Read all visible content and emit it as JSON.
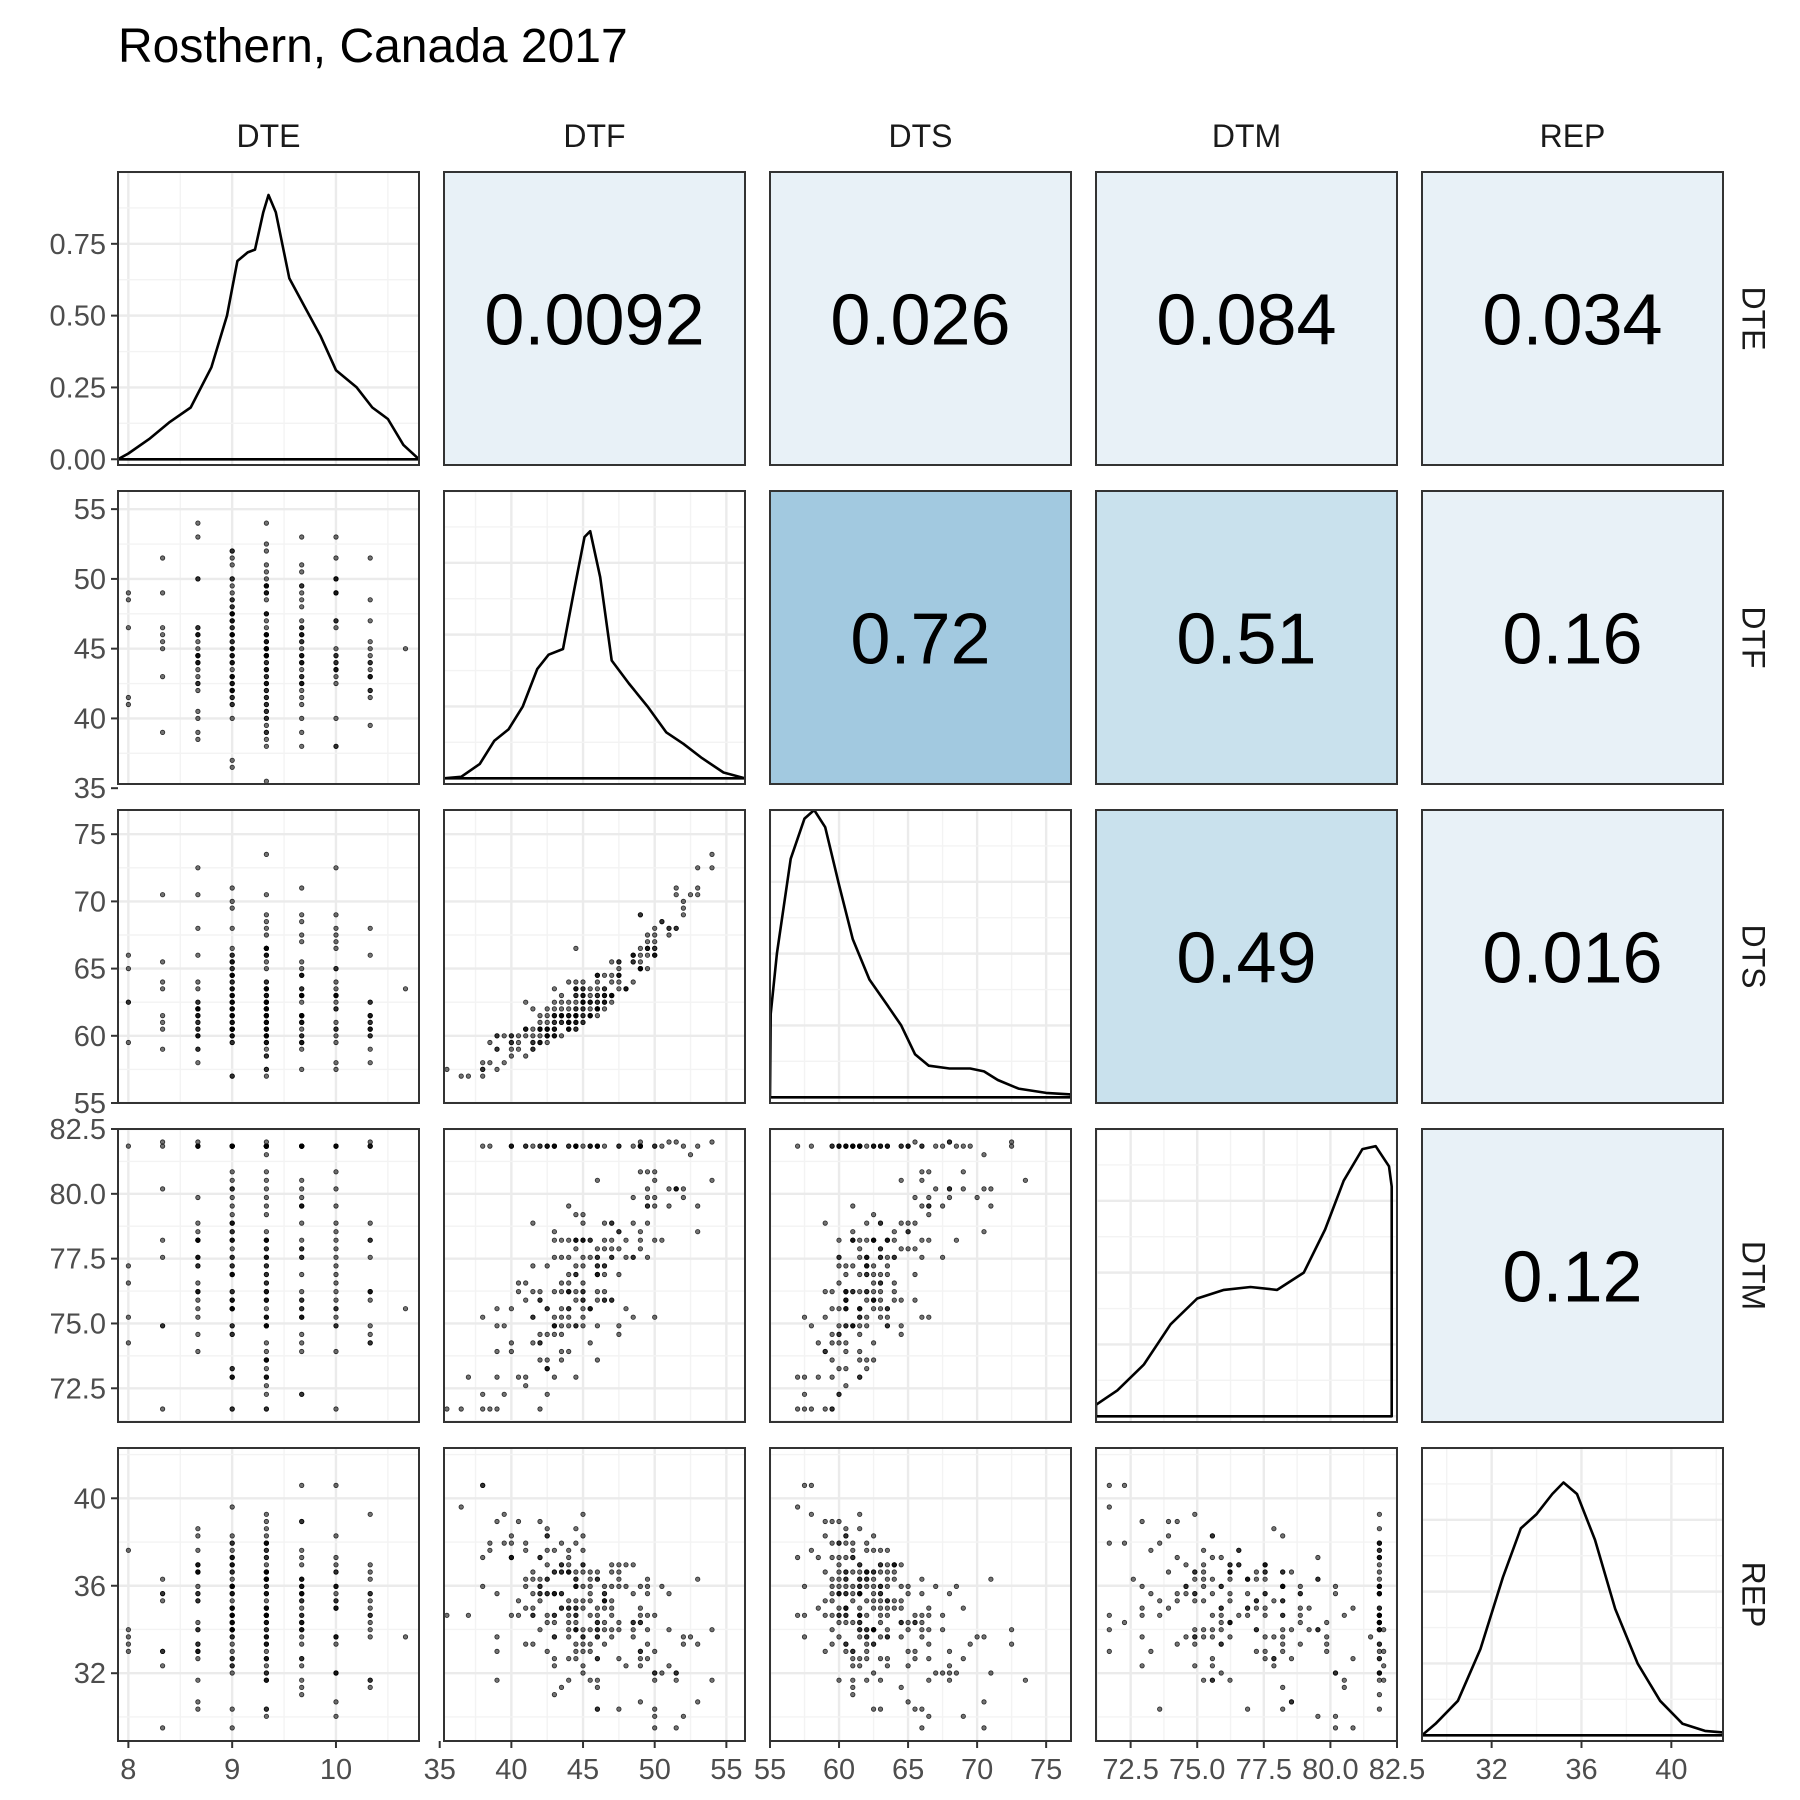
{
  "chart_data": {
    "type": "scatter-matrix",
    "title": "Rosthern, Canada 2017",
    "variables": [
      "DTE",
      "DTF",
      "DTS",
      "DTM",
      "REP"
    ],
    "axes": {
      "DTE": {
        "range": [
          7.9,
          10.8
        ],
        "ticks": [
          8,
          9,
          10
        ],
        "tick_labels": [
          "8",
          "9",
          "10"
        ]
      },
      "DTF": {
        "range": [
          35.3,
          56.3
        ],
        "ticks": [
          35,
          40,
          45,
          50,
          55
        ],
        "tick_labels": [
          "35",
          "40",
          "45",
          "50",
          "55"
        ]
      },
      "DTS": {
        "range": [
          55,
          76.8
        ],
        "ticks": [
          55,
          60,
          65,
          70,
          75
        ],
        "tick_labels": [
          "55",
          "60",
          "65",
          "70",
          "75"
        ]
      },
      "DTM": {
        "range": [
          71.2,
          82.5
        ],
        "ticks": [
          72.5,
          75.0,
          77.5,
          80.0,
          82.5
        ],
        "tick_labels": [
          "72.5",
          "75.0",
          "77.5",
          "80.0",
          "82.5"
        ]
      },
      "REP": {
        "range": [
          28.9,
          42.3
        ],
        "ticks": [
          32,
          36,
          40
        ],
        "tick_labels": [
          "32",
          "36",
          "40"
        ]
      }
    },
    "density_axis": {
      "range": [
        -0.02,
        1.0
      ],
      "ticks": [
        0.0,
        0.25,
        0.5,
        0.75
      ],
      "tick_labels": [
        "0.00",
        "0.25",
        "0.50",
        "0.75"
      ]
    },
    "correlations": [
      {
        "row": "DTE",
        "col": "DTF",
        "value": "0.0092",
        "fill": "#e8f1f7"
      },
      {
        "row": "DTE",
        "col": "DTS",
        "value": "0.026",
        "fill": "#e8f1f7"
      },
      {
        "row": "DTE",
        "col": "DTM",
        "value": "0.084",
        "fill": "#e8f1f7"
      },
      {
        "row": "DTE",
        "col": "REP",
        "value": "0.034",
        "fill": "#e8f1f7"
      },
      {
        "row": "DTF",
        "col": "DTS",
        "value": "0.72",
        "fill": "#a2c9e0"
      },
      {
        "row": "DTF",
        "col": "DTM",
        "value": "0.51",
        "fill": "#c9e1ed"
      },
      {
        "row": "DTF",
        "col": "REP",
        "value": "0.16",
        "fill": "#e8f1f7"
      },
      {
        "row": "DTS",
        "col": "DTM",
        "value": "0.49",
        "fill": "#c9e1ed"
      },
      {
        "row": "DTS",
        "col": "REP",
        "value": "0.016",
        "fill": "#e8f1f7"
      },
      {
        "row": "DTM",
        "col": "REP",
        "value": "0.12",
        "fill": "#e8f1f7"
      }
    ],
    "densities": {
      "DTE": [
        [
          7.9,
          0.0
        ],
        [
          8.0,
          0.02
        ],
        [
          8.2,
          0.07
        ],
        [
          8.4,
          0.13
        ],
        [
          8.6,
          0.18
        ],
        [
          8.8,
          0.32
        ],
        [
          8.95,
          0.5
        ],
        [
          9.05,
          0.69
        ],
        [
          9.15,
          0.72
        ],
        [
          9.22,
          0.73
        ],
        [
          9.3,
          0.86
        ],
        [
          9.35,
          0.92
        ],
        [
          9.42,
          0.86
        ],
        [
          9.55,
          0.63
        ],
        [
          9.7,
          0.53
        ],
        [
          9.85,
          0.43
        ],
        [
          10.0,
          0.31
        ],
        [
          10.2,
          0.25
        ],
        [
          10.35,
          0.18
        ],
        [
          10.5,
          0.14
        ],
        [
          10.65,
          0.05
        ],
        [
          10.8,
          0.0
        ]
      ],
      "DTF": [
        [
          35.3,
          0.0
        ],
        [
          36.5,
          0.005
        ],
        [
          37.8,
          0.05
        ],
        [
          38.8,
          0.13
        ],
        [
          39.8,
          0.17
        ],
        [
          40.8,
          0.25
        ],
        [
          41.8,
          0.38
        ],
        [
          42.6,
          0.43
        ],
        [
          43.6,
          0.45
        ],
        [
          44.4,
          0.66
        ],
        [
          45.1,
          0.84
        ],
        [
          45.5,
          0.86
        ],
        [
          46.2,
          0.7
        ],
        [
          47.0,
          0.41
        ],
        [
          48.2,
          0.33
        ],
        [
          49.5,
          0.25
        ],
        [
          50.8,
          0.16
        ],
        [
          52.0,
          0.12
        ],
        [
          53.3,
          0.07
        ],
        [
          54.8,
          0.02
        ],
        [
          56.3,
          0.0
        ]
      ],
      "DTS": [
        [
          55,
          0.0
        ],
        [
          55.05,
          0.29
        ],
        [
          55.5,
          0.5
        ],
        [
          56.5,
          0.83
        ],
        [
          57.5,
          0.97
        ],
        [
          58.2,
          1.0
        ],
        [
          59.0,
          0.94
        ],
        [
          60.0,
          0.74
        ],
        [
          61.0,
          0.55
        ],
        [
          62.2,
          0.41
        ],
        [
          63.5,
          0.32
        ],
        [
          64.5,
          0.25
        ],
        [
          65.5,
          0.15
        ],
        [
          66.5,
          0.11
        ],
        [
          68.0,
          0.1
        ],
        [
          69.5,
          0.1
        ],
        [
          70.5,
          0.09
        ],
        [
          71.5,
          0.06
        ],
        [
          73.0,
          0.03
        ],
        [
          75.0,
          0.015
        ],
        [
          76.8,
          0.01
        ],
        [
          76.8,
          0.0
        ]
      ],
      "DTM": [
        [
          71.2,
          0.0
        ],
        [
          71.2,
          0.04
        ],
        [
          72.0,
          0.09
        ],
        [
          73.0,
          0.18
        ],
        [
          74.0,
          0.32
        ],
        [
          75.0,
          0.41
        ],
        [
          76.0,
          0.44
        ],
        [
          77.0,
          0.45
        ],
        [
          78.0,
          0.44
        ],
        [
          79.0,
          0.5
        ],
        [
          79.8,
          0.65
        ],
        [
          80.5,
          0.82
        ],
        [
          81.2,
          0.93
        ],
        [
          81.7,
          0.94
        ],
        [
          82.2,
          0.87
        ],
        [
          82.3,
          0.8
        ],
        [
          82.3,
          0.0
        ]
      ],
      "REP": [
        [
          28.9,
          0.0
        ],
        [
          29.5,
          0.04
        ],
        [
          30.5,
          0.12
        ],
        [
          31.5,
          0.3
        ],
        [
          32.5,
          0.55
        ],
        [
          33.3,
          0.72
        ],
        [
          34.0,
          0.77
        ],
        [
          34.7,
          0.84
        ],
        [
          35.2,
          0.88
        ],
        [
          35.8,
          0.84
        ],
        [
          36.6,
          0.68
        ],
        [
          37.5,
          0.44
        ],
        [
          38.5,
          0.25
        ],
        [
          39.5,
          0.12
        ],
        [
          40.5,
          0.04
        ],
        [
          41.5,
          0.015
        ],
        [
          42.3,
          0.01
        ],
        [
          42.3,
          0.0
        ]
      ]
    },
    "scatter_description": "Pairwise scatter plots of DTE, DTF, DTS, DTM, REP in lower triangle; densities on diagonal; correlation coefficients in upper triangle."
  }
}
